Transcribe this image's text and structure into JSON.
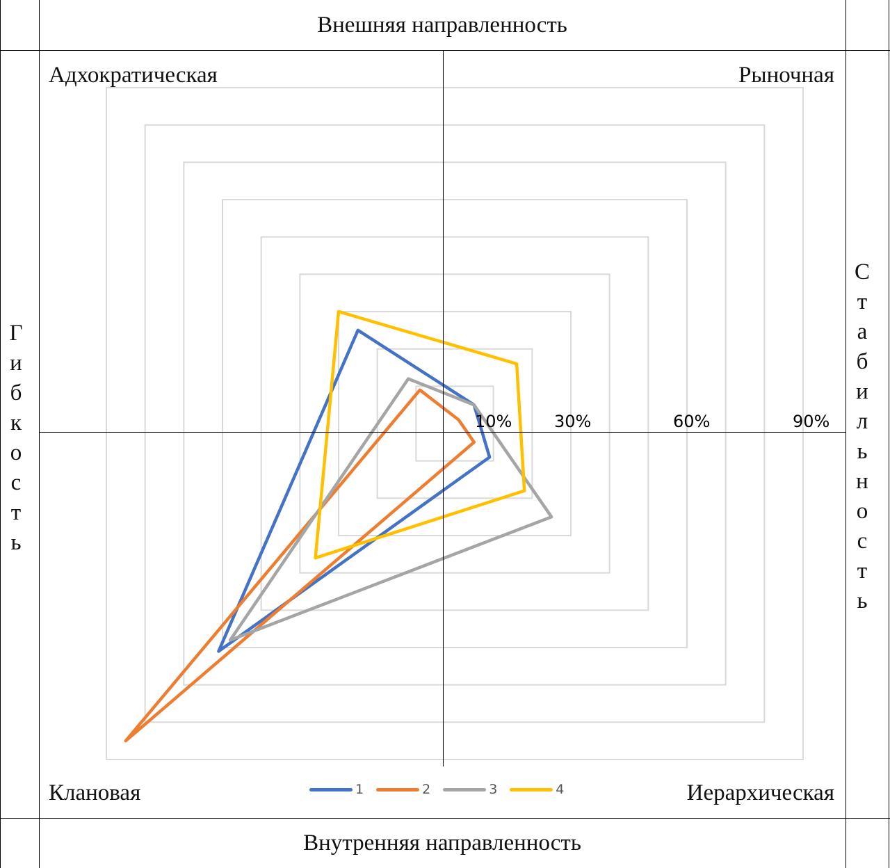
{
  "table": {
    "top": "Внешняя направленность",
    "bottom": "Внутренняя направленность",
    "left": "Гибкость",
    "right": "Стабильность"
  },
  "chart_data": {
    "type": "radar",
    "categories": [
      "Адхократическая",
      "Рыночная",
      "Иерархическая",
      "Клановая"
    ],
    "rmax": 90,
    "ring_step": 10,
    "tick_labels": [
      "10%",
      "30%",
      "60%",
      "90%"
    ],
    "legend_position": "bottom",
    "series": [
      {
        "name": "1",
        "color": "#4472C4",
        "values": [
          25,
          5,
          9,
          61
        ]
      },
      {
        "name": "2",
        "color": "#ED7D31",
        "values": [
          9,
          1,
          5,
          85
        ]
      },
      {
        "name": "3",
        "color": "#A5A5A5",
        "values": [
          12,
          5,
          25,
          58
        ]
      },
      {
        "name": "4",
        "color": "#FFC000",
        "values": [
          30,
          16,
          18,
          36
        ]
      }
    ]
  }
}
